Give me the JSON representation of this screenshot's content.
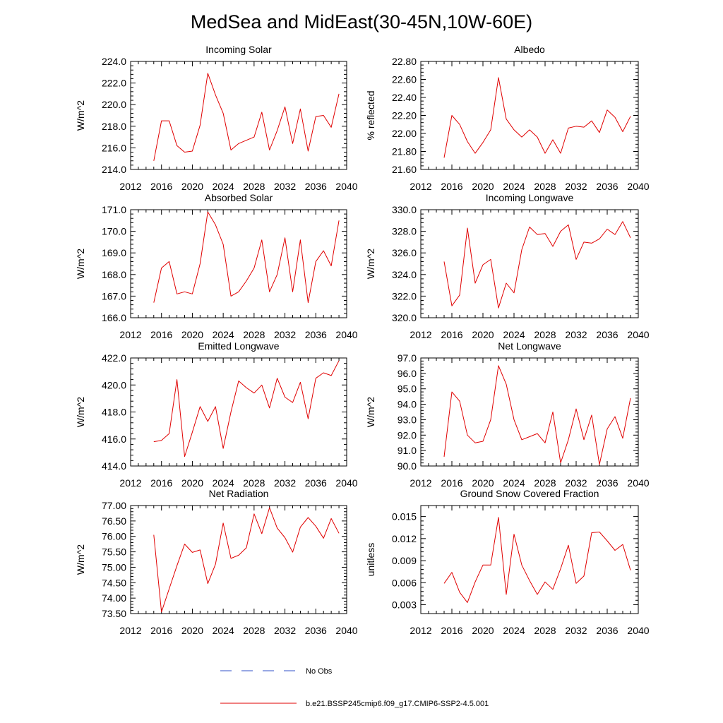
{
  "title": "MedSea and MidEast(30-45N,10W-60E)",
  "legend": [
    {
      "label": "No Obs",
      "color": "#3050c8",
      "style": "dashed"
    },
    {
      "label": "b.e21.BSSP245cmip6.f09_g17.CMIP6-SSP2-4.5.001",
      "color": "#e00000",
      "style": "solid"
    }
  ],
  "chart_data": [
    {
      "type": "line",
      "title": "Incoming Solar",
      "xlabel": "",
      "ylabel": "W/m^2",
      "xlim": [
        2012,
        2040
      ],
      "ylim": [
        214.0,
        224.0
      ],
      "xticks": [
        "2012",
        "2016",
        "2020",
        "2024",
        "2028",
        "2032",
        "2036",
        "2040"
      ],
      "yticks": [
        "214.0",
        "216.0",
        "218.0",
        "220.0",
        "222.0",
        "224.0"
      ],
      "series": [
        {
          "name": "b.e21.BSSP245cmip6.f09_g17.CMIP6-SSP2-4.5.001",
          "x": [
            2015,
            2016,
            2017,
            2018,
            2019,
            2020,
            2021,
            2022,
            2023,
            2024,
            2025,
            2026,
            2027,
            2028,
            2029,
            2030,
            2031,
            2032,
            2033,
            2034,
            2035,
            2036,
            2037,
            2038,
            2039
          ],
          "values": [
            214.8,
            218.5,
            218.5,
            216.2,
            215.6,
            215.7,
            218.1,
            222.9,
            220.9,
            219.2,
            215.8,
            216.4,
            216.7,
            217.0,
            219.3,
            215.8,
            217.6,
            219.8,
            216.4,
            219.6,
            215.7,
            218.9,
            219.0,
            217.9,
            221.0
          ]
        }
      ]
    },
    {
      "type": "line",
      "title": "Albedo",
      "xlabel": "",
      "ylabel": "% reflected",
      "xlim": [
        2012,
        2040
      ],
      "ylim": [
        21.6,
        22.8
      ],
      "xticks": [
        "2012",
        "2016",
        "2020",
        "2024",
        "2028",
        "2032",
        "2036",
        "2040"
      ],
      "yticks": [
        "21.60",
        "21.80",
        "22.00",
        "22.20",
        "22.40",
        "22.60",
        "22.80"
      ],
      "series": [
        {
          "name": "b.e21.BSSP245cmip6.f09_g17.CMIP6-SSP2-4.5.001",
          "x": [
            2015,
            2016,
            2017,
            2018,
            2019,
            2020,
            2021,
            2022,
            2023,
            2024,
            2025,
            2026,
            2027,
            2028,
            2029,
            2030,
            2031,
            2032,
            2033,
            2034,
            2035,
            2036,
            2037,
            2038,
            2039
          ],
          "values": [
            21.73,
            22.2,
            22.1,
            21.91,
            21.78,
            21.9,
            22.04,
            22.62,
            22.16,
            22.04,
            21.96,
            22.04,
            21.96,
            21.78,
            21.93,
            21.78,
            22.06,
            22.08,
            22.07,
            22.14,
            22.01,
            22.26,
            22.18,
            22.02,
            22.19
          ]
        }
      ]
    },
    {
      "type": "line",
      "title": "Absorbed Solar",
      "xlabel": "",
      "ylabel": "W/m^2",
      "xlim": [
        2012,
        2040
      ],
      "ylim": [
        166.0,
        171.0
      ],
      "xticks": [
        "2012",
        "2016",
        "2020",
        "2024",
        "2028",
        "2032",
        "2036",
        "2040"
      ],
      "yticks": [
        "166.0",
        "167.0",
        "168.0",
        "169.0",
        "170.0",
        "171.0"
      ],
      "series": [
        {
          "name": "b.e21.BSSP245cmip6.f09_g17.CMIP6-SSP2-4.5.001",
          "x": [
            2015,
            2016,
            2017,
            2018,
            2019,
            2020,
            2021,
            2022,
            2023,
            2024,
            2025,
            2026,
            2027,
            2028,
            2029,
            2030,
            2031,
            2032,
            2033,
            2034,
            2035,
            2036,
            2037,
            2038,
            2039
          ],
          "values": [
            166.7,
            168.3,
            168.6,
            167.1,
            167.2,
            167.1,
            168.5,
            170.9,
            170.3,
            169.4,
            167.0,
            167.2,
            167.7,
            168.3,
            169.6,
            167.2,
            168.0,
            169.7,
            167.2,
            169.6,
            166.7,
            168.6,
            169.1,
            168.4,
            170.5
          ]
        }
      ]
    },
    {
      "type": "line",
      "title": "Incoming Longwave",
      "xlabel": "",
      "ylabel": "W/m^2",
      "xlim": [
        2012,
        2040
      ],
      "ylim": [
        320.0,
        330.0
      ],
      "xticks": [
        "2012",
        "2016",
        "2020",
        "2024",
        "2028",
        "2032",
        "2036",
        "2040"
      ],
      "yticks": [
        "320.0",
        "322.0",
        "324.0",
        "326.0",
        "328.0",
        "330.0"
      ],
      "series": [
        {
          "name": "b.e21.BSSP245cmip6.f09_g17.CMIP6-SSP2-4.5.001",
          "x": [
            2015,
            2016,
            2017,
            2018,
            2019,
            2020,
            2021,
            2022,
            2023,
            2024,
            2025,
            2026,
            2027,
            2028,
            2029,
            2030,
            2031,
            2032,
            2033,
            2034,
            2035,
            2036,
            2037,
            2038,
            2039
          ],
          "values": [
            325.2,
            321.1,
            322.1,
            328.3,
            323.2,
            324.9,
            325.4,
            320.9,
            323.2,
            322.3,
            326.3,
            328.4,
            327.7,
            327.8,
            326.6,
            328.0,
            328.6,
            325.4,
            327.0,
            326.9,
            327.3,
            328.2,
            327.7,
            328.9,
            327.4
          ]
        }
      ]
    },
    {
      "type": "line",
      "title": "Emitted Longwave",
      "xlabel": "",
      "ylabel": "W/m^2",
      "xlim": [
        2012,
        2040
      ],
      "ylim": [
        414.0,
        422.0
      ],
      "xticks": [
        "2012",
        "2016",
        "2020",
        "2024",
        "2028",
        "2032",
        "2036",
        "2040"
      ],
      "yticks": [
        "414.0",
        "416.0",
        "418.0",
        "420.0",
        "422.0"
      ],
      "series": [
        {
          "name": "b.e21.BSSP245cmip6.f09_g17.CMIP6-SSP2-4.5.001",
          "x": [
            2015,
            2016,
            2017,
            2018,
            2019,
            2020,
            2021,
            2022,
            2023,
            2024,
            2025,
            2026,
            2027,
            2028,
            2029,
            2030,
            2031,
            2032,
            2033,
            2034,
            2035,
            2036,
            2037,
            2038,
            2039
          ],
          "values": [
            415.8,
            415.9,
            416.4,
            420.4,
            414.7,
            416.5,
            418.4,
            417.3,
            418.4,
            415.3,
            418.0,
            420.3,
            419.8,
            419.4,
            420.0,
            418.3,
            420.5,
            419.1,
            418.7,
            420.2,
            417.5,
            420.5,
            420.9,
            420.7,
            421.8
          ]
        }
      ]
    },
    {
      "type": "line",
      "title": "Net Longwave",
      "xlabel": "",
      "ylabel": "W/m^2",
      "xlim": [
        2012,
        2040
      ],
      "ylim": [
        90.0,
        97.0
      ],
      "xticks": [
        "2012",
        "2016",
        "2020",
        "2024",
        "2028",
        "2032",
        "2036",
        "2040"
      ],
      "yticks": [
        "90.0",
        "91.0",
        "92.0",
        "93.0",
        "94.0",
        "95.0",
        "96.0",
        "97.0"
      ],
      "series": [
        {
          "name": "b.e21.BSSP245cmip6.f09_g17.CMIP6-SSP2-4.5.001",
          "x": [
            2015,
            2016,
            2017,
            2018,
            2019,
            2020,
            2021,
            2022,
            2023,
            2024,
            2025,
            2026,
            2027,
            2028,
            2029,
            2030,
            2031,
            2032,
            2033,
            2034,
            2035,
            2036,
            2037,
            2038,
            2039
          ],
          "values": [
            90.6,
            94.8,
            94.2,
            92.0,
            91.5,
            91.6,
            93.0,
            96.5,
            95.3,
            93.0,
            91.7,
            91.9,
            92.1,
            91.5,
            93.5,
            90.2,
            91.7,
            93.7,
            91.7,
            93.3,
            90.1,
            92.4,
            93.2,
            91.8,
            94.4
          ]
        }
      ]
    },
    {
      "type": "line",
      "title": "Net Radiation",
      "xlabel": "",
      "ylabel": "W/m^2",
      "xlim": [
        2012,
        2040
      ],
      "ylim": [
        73.5,
        77.0
      ],
      "xticks": [
        "2012",
        "2016",
        "2020",
        "2024",
        "2028",
        "2032",
        "2036",
        "2040"
      ],
      "yticks": [
        "73.50",
        "74.00",
        "74.50",
        "75.00",
        "75.50",
        "76.00",
        "76.50",
        "77.00"
      ],
      "series": [
        {
          "name": "b.e21.BSSP245cmip6.f09_g17.CMIP6-SSP2-4.5.001",
          "x": [
            2015,
            2016,
            2017,
            2018,
            2019,
            2020,
            2021,
            2022,
            2023,
            2024,
            2025,
            2026,
            2027,
            2028,
            2029,
            2030,
            2031,
            2032,
            2033,
            2034,
            2035,
            2036,
            2037,
            2038,
            2039
          ],
          "values": [
            76.05,
            73.55,
            74.3,
            75.05,
            75.75,
            75.48,
            75.56,
            74.47,
            75.1,
            76.43,
            75.29,
            75.39,
            75.63,
            76.73,
            76.09,
            76.93,
            76.27,
            75.96,
            75.49,
            76.3,
            76.61,
            76.33,
            75.94,
            76.58,
            76.1
          ]
        }
      ]
    },
    {
      "type": "line",
      "title": "Ground Snow Covered Fraction",
      "xlabel": "",
      "ylabel": "unitless",
      "xlim": [
        2012,
        2040
      ],
      "ylim": [
        0.0018,
        0.0165
      ],
      "xticks": [
        "2012",
        "2016",
        "2020",
        "2024",
        "2028",
        "2032",
        "2036",
        "2040"
      ],
      "yticks": [
        "0.003",
        "0.006",
        "0.009",
        "0.012",
        "0.015"
      ],
      "ytick_values": [
        0.003,
        0.006,
        0.009,
        0.012,
        0.015
      ],
      "series": [
        {
          "name": "b.e21.BSSP245cmip6.f09_g17.CMIP6-SSP2-4.5.001",
          "x": [
            2015,
            2016,
            2017,
            2018,
            2019,
            2020,
            2021,
            2022,
            2023,
            2024,
            2025,
            2026,
            2027,
            2028,
            2029,
            2030,
            2031,
            2032,
            2033,
            2034,
            2035,
            2036,
            2037,
            2038,
            2039
          ],
          "values": [
            0.0059,
            0.0074,
            0.0047,
            0.0033,
            0.0061,
            0.0084,
            0.0084,
            0.0149,
            0.0044,
            0.0126,
            0.0084,
            0.0063,
            0.0044,
            0.0061,
            0.0051,
            0.0079,
            0.0111,
            0.0059,
            0.0069,
            0.0128,
            0.0129,
            0.0117,
            0.0104,
            0.0112,
            0.0077
          ]
        }
      ]
    }
  ]
}
